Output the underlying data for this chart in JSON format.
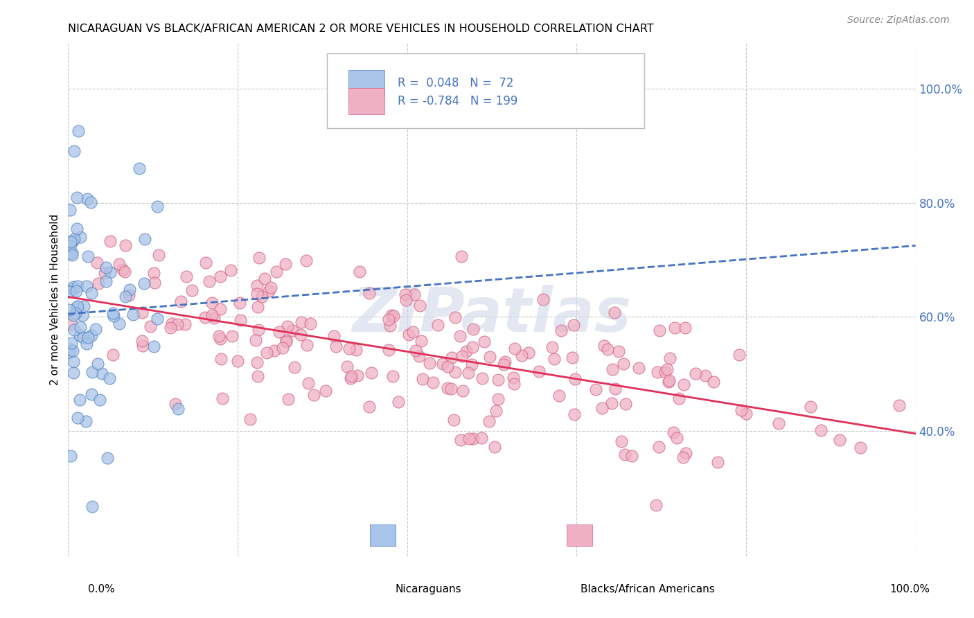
{
  "title": "NICARAGUAN VS BLACK/AFRICAN AMERICAN 2 OR MORE VEHICLES IN HOUSEHOLD CORRELATION CHART",
  "source": "Source: ZipAtlas.com",
  "ylabel": "2 or more Vehicles in Household",
  "y_ticks": [
    0.4,
    0.6,
    0.8,
    1.0
  ],
  "y_tick_labels": [
    "40.0%",
    "60.0%",
    "80.0%",
    "100.0%"
  ],
  "xlim": [
    0.0,
    1.0
  ],
  "ylim": [
    0.18,
    1.08
  ],
  "legend_R1": "R =  0.048   N =  72",
  "legend_R2": "R = -0.784   N = 199",
  "dot_color_blue": "#a8c4e8",
  "dot_color_pink": "#f0b0c4",
  "dot_edge_blue": "#5080c0",
  "dot_edge_pink": "#d06080",
  "trendline_blue_color": "#4472c4",
  "trendline_pink_color": "#e0305a",
  "trendline_blue_y0": 0.605,
  "trendline_blue_y1": 0.725,
  "trendline_pink_y0": 0.635,
  "trendline_pink_y1": 0.395,
  "watermark": "ZIPatlas",
  "watermark_color": "#d0d8e8",
  "legend_color": "#4472c4",
  "grid_color": "#c8c8c8",
  "blue_seed": 42,
  "pink_seed": 7,
  "n_blue": 72,
  "n_pink": 199
}
